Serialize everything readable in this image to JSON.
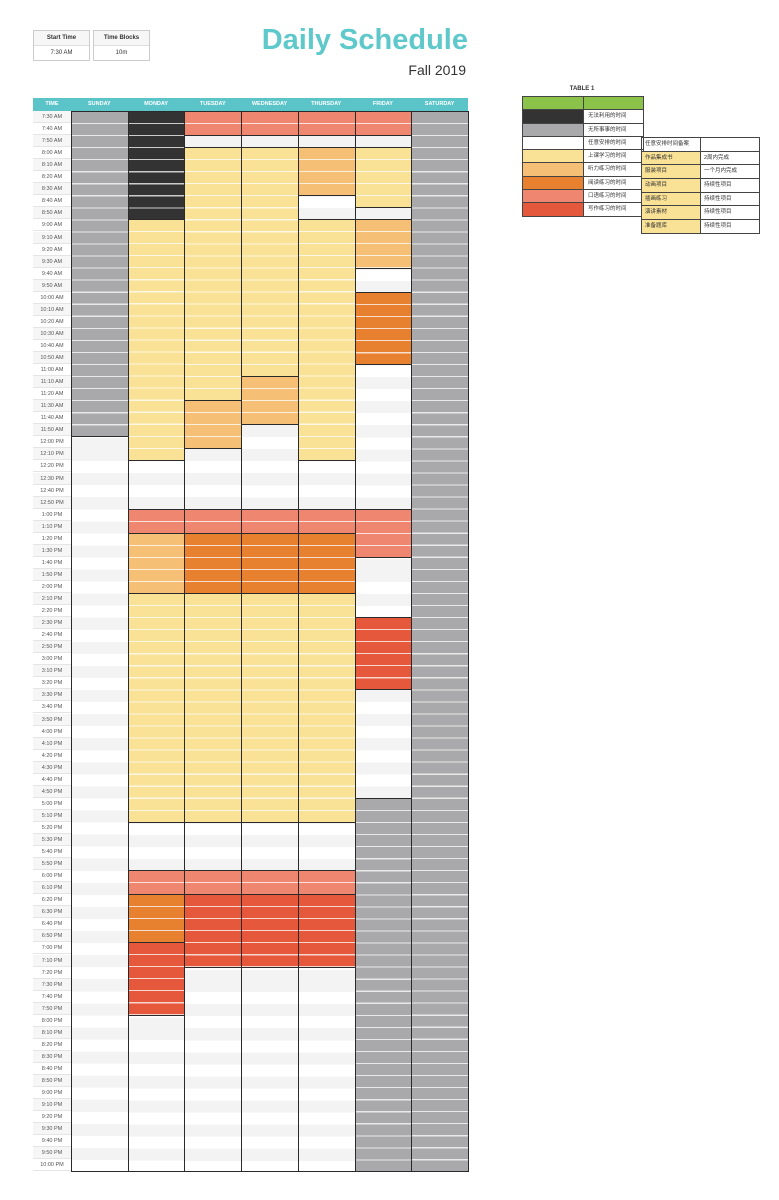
{
  "settings": {
    "start_label": "Start Time",
    "start_value": "7:30 AM",
    "blocks_label": "Time Blocks",
    "blocks_value": "10m"
  },
  "header": {
    "title": "Daily Schedule",
    "subtitle": "Fall 2019"
  },
  "columns": [
    "TIME",
    "SUNDAY",
    "MONDAY",
    "TUESDAY",
    "WEDNESDAY",
    "THURSDAY",
    "FRIDAY",
    "SATURDAY"
  ],
  "times": [
    "7:30 AM",
    "7:40 AM",
    "7:50 AM",
    "8:00 AM",
    "8:10 AM",
    "8:20 AM",
    "8:30 AM",
    "8:40 AM",
    "8:50 AM",
    "9:00 AM",
    "9:10 AM",
    "9:20 AM",
    "9:30 AM",
    "9:40 AM",
    "9:50 AM",
    "10:00 AM",
    "10:10 AM",
    "10:20 AM",
    "10:30 AM",
    "10:40 AM",
    "10:50 AM",
    "11:00 AM",
    "11:10 AM",
    "11:20 AM",
    "11:30 AM",
    "11:40 AM",
    "11:50 AM",
    "12:00 PM",
    "12:10 PM",
    "12:20 PM",
    "12:30 PM",
    "12:40 PM",
    "12:50 PM",
    "1:00 PM",
    "1:10 PM",
    "1:20 PM",
    "1:30 PM",
    "1:40 PM",
    "1:50 PM",
    "2:00 PM",
    "2:10 PM",
    "2:20 PM",
    "2:30 PM",
    "2:40 PM",
    "2:50 PM",
    "3:00 PM",
    "3:10 PM",
    "3:20 PM",
    "3:30 PM",
    "3:40 PM",
    "3:50 PM",
    "4:00 PM",
    "4:10 PM",
    "4:20 PM",
    "4:30 PM",
    "4:40 PM",
    "4:50 PM",
    "5:00 PM",
    "5:10 PM",
    "5:20 PM",
    "5:30 PM",
    "5:40 PM",
    "5:50 PM",
    "6:00 PM",
    "6:10 PM",
    "6:20 PM",
    "6:30 PM",
    "6:40 PM",
    "6:50 PM",
    "7:00 PM",
    "7:10 PM",
    "7:20 PM",
    "7:30 PM",
    "7:40 PM",
    "7:50 PM",
    "8:00 PM",
    "8:10 PM",
    "8:20 PM",
    "8:30 PM",
    "8:40 PM",
    "8:50 PM",
    "9:00 PM",
    "9:10 PM",
    "9:20 PM",
    "9:30 PM",
    "9:40 PM",
    "9:50 PM",
    "10:00 PM"
  ],
  "categories": {
    "D": {
      "color": "#333333",
      "label": "无法利用的时间"
    },
    "G": {
      "color": "#a9a9ab",
      "label": "无所事事的时间"
    },
    "W": {
      "color": "#ffffff",
      "label": "任意安排的时间"
    },
    "Y": {
      "color": "#f9e196",
      "label": "上课学习的时间"
    },
    "L": {
      "color": "#f5bf76",
      "label": "听力练习的时间"
    },
    "O": {
      "color": "#e7802f",
      "label": "阅读练习的时间"
    },
    "S": {
      "color": "#ee8670",
      "label": "口语练习的时间"
    },
    "R": {
      "color": "#e5583b",
      "label": "写作练习的时间"
    }
  },
  "legend_order": [
    "D",
    "G",
    "W",
    "Y",
    "L",
    "O",
    "S",
    "R"
  ],
  "legend": {
    "title": "TABLE 1",
    "header_color": "#8bc34a"
  },
  "schedule": {
    "SUNDAY": [
      [
        "G",
        27
      ],
      [
        "W",
        61
      ]
    ],
    "MONDAY": [
      [
        "D",
        9
      ],
      [
        "Y",
        20
      ],
      [
        "W",
        4
      ],
      [
        "S",
        2
      ],
      [
        "L",
        5
      ],
      [
        "Y",
        19
      ],
      [
        "W",
        4
      ],
      [
        "S",
        2
      ],
      [
        "O",
        4
      ],
      [
        "R",
        6
      ],
      [
        "W",
        13
      ]
    ],
    "TUESDAY": [
      [
        "S",
        2
      ],
      [
        "W",
        1
      ],
      [
        "Y",
        21
      ],
      [
        "L",
        4
      ],
      [
        "W",
        5
      ],
      [
        "S",
        2
      ],
      [
        "O",
        5
      ],
      [
        "Y",
        19
      ],
      [
        "W",
        4
      ],
      [
        "S",
        2
      ],
      [
        "R",
        6
      ],
      [
        "W",
        17
      ]
    ],
    "WEDNESDAY": [
      [
        "S",
        2
      ],
      [
        "W",
        1
      ],
      [
        "Y",
        19
      ],
      [
        "L",
        4
      ],
      [
        "W",
        7
      ],
      [
        "S",
        2
      ],
      [
        "O",
        5
      ],
      [
        "Y",
        19
      ],
      [
        "W",
        4
      ],
      [
        "S",
        2
      ],
      [
        "R",
        6
      ],
      [
        "W",
        17
      ]
    ],
    "THURSDAY": [
      [
        "S",
        2
      ],
      [
        "W",
        1
      ],
      [
        "L",
        4
      ],
      [
        "W",
        2
      ],
      [
        "Y",
        20
      ],
      [
        "W",
        4
      ],
      [
        "S",
        2
      ],
      [
        "O",
        5
      ],
      [
        "Y",
        19
      ],
      [
        "W",
        4
      ],
      [
        "S",
        2
      ],
      [
        "R",
        6
      ],
      [
        "W",
        17
      ]
    ],
    "FRIDAY": [
      [
        "S",
        2
      ],
      [
        "W",
        1
      ],
      [
        "Y",
        5
      ],
      [
        "W",
        1
      ],
      [
        "L",
        4
      ],
      [
        "W",
        2
      ],
      [
        "O",
        6
      ],
      [
        "W",
        12
      ],
      [
        "S",
        4
      ],
      [
        "W",
        5
      ],
      [
        "R",
        6
      ],
      [
        "W",
        9
      ],
      [
        "G",
        31
      ]
    ],
    "SATURDAY": [
      [
        "G",
        88
      ]
    ]
  },
  "notes": {
    "header": "任意安排时间备案",
    "rows": [
      {
        "item": "作品集成书",
        "due": "2周内完成"
      },
      {
        "item": "服装项目",
        "due": "一个月内完成"
      },
      {
        "item": "动画项目",
        "due": "持续性项目"
      },
      {
        "item": "插画练习",
        "due": "持续性项目"
      },
      {
        "item": "演讲素材",
        "due": "持续性项目"
      },
      {
        "item": "准备题库",
        "due": "持续性项目"
      }
    ],
    "highlight": "#f9e196"
  }
}
